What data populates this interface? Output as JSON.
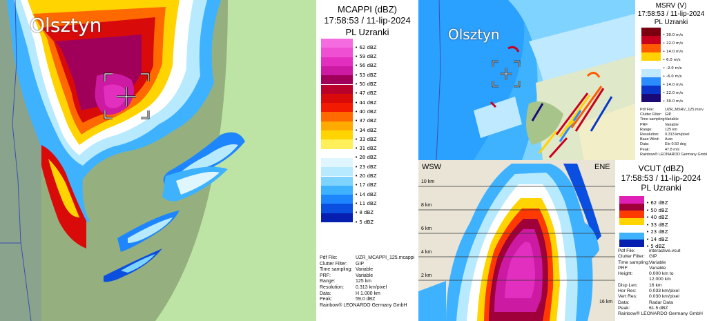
{
  "mcappi": {
    "city": "Olsztyn",
    "title_line1": "MCAPPI (dBZ)",
    "title_line2": "17:58:53 / 11-lip-2024",
    "title_line3": "PL Uzranki",
    "legend": [
      {
        "label": "62 dBZ",
        "color": "#f56be0"
      },
      {
        "label": "59 dBZ",
        "color": "#ee4fd3"
      },
      {
        "label": "56 dBZ",
        "color": "#e22fbf"
      },
      {
        "label": "53 dBZ",
        "color": "#cc1aa3"
      },
      {
        "label": "50 dBZ",
        "color": "#a0005a"
      },
      {
        "label": "47 dBZ",
        "color": "#b8002a"
      },
      {
        "label": "44 dBZ",
        "color": "#d80a0a"
      },
      {
        "label": "40 dBZ",
        "color": "#f21a00"
      },
      {
        "label": "37 dBZ",
        "color": "#ff6a00"
      },
      {
        "label": "34 dBZ",
        "color": "#ffaa00"
      },
      {
        "label": "33 dBZ",
        "color": "#ffd400"
      },
      {
        "label": "31 dBZ",
        "color": "#ffef5a"
      },
      {
        "label": "28 dBZ",
        "color": "#ffffff"
      },
      {
        "label": "23 dBZ",
        "color": "#dff6ff"
      },
      {
        "label": "20 dBZ",
        "color": "#b7eaff"
      },
      {
        "label": "17 dBZ",
        "color": "#7fd3ff"
      },
      {
        "label": "14 dBZ",
        "color": "#3fb2ff"
      },
      {
        "label": "11 dBZ",
        "color": "#1d86ff"
      },
      {
        "label": "8 dBZ",
        "color": "#0a4fe0"
      },
      {
        "label": "5 dBZ",
        "color": "#061fb0"
      }
    ],
    "meta": [
      {
        "key": "Pdf File:",
        "value": "UZR_MCAPPI_125.mcappi"
      },
      {
        "key": "Clutter Filter:",
        "value": "GIP"
      },
      {
        "key": "Time sampling:",
        "value": "Variable"
      },
      {
        "key": "PRF:",
        "value": "Variable"
      },
      {
        "key": "Range:",
        "value": "125 km"
      },
      {
        "key": "Resolution:",
        "value": "0.313 km/pixel"
      },
      {
        "key": "Data:",
        "value": "H 1.000 km"
      },
      {
        "key": "Peak:",
        "value": "59.0 dBZ"
      }
    ],
    "copyright": "Rainbow® LEONARDO Germany GmbH"
  },
  "msrv": {
    "city": "Olsztyn",
    "title_line1": "MSRV (V)",
    "title_line2": "17:58:53 / 11-lip-2024",
    "title_line3": "PL Uzranki",
    "legend": [
      {
        "label": "30.0 m/s",
        "color": "#7a0010"
      },
      {
        "label": "22.0 m/s",
        "color": "#c8001e"
      },
      {
        "label": "14.0 m/s",
        "color": "#ff5a00"
      },
      {
        "label": "6.0 m/s",
        "color": "#ffd200"
      },
      {
        "label": "-2.0 m/s",
        "color": "#ffffff"
      },
      {
        "label": "-6.0 m/s",
        "color": "#bfe9ff"
      },
      {
        "label": "14.0 m/s",
        "color": "#2a8cff"
      },
      {
        "label": "22.0 m/s",
        "color": "#0b35c8"
      },
      {
        "label": "30.0 m/s",
        "color": "#1a0a78"
      }
    ],
    "meta": [
      {
        "key": "Pdf File:",
        "value": "UZR_MSRV_125.msrv"
      },
      {
        "key": "Clutter Filter:",
        "value": "GIP"
      },
      {
        "key": "Time sampling:",
        "value": "Variable"
      },
      {
        "key": "PRF:",
        "value": "Variable"
      },
      {
        "key": "Range:",
        "value": "125 km"
      },
      {
        "key": "Resolution:",
        "value": "0.313 km/pixel"
      },
      {
        "key": "Base Wind:",
        "value": "Auto"
      },
      {
        "key": "Data:",
        "value": "Ele 0.50 deg"
      },
      {
        "key": "Peak:",
        "value": "47.8 m/s"
      }
    ],
    "copyright": "Rainbow® LEONARDO Germany GmbH"
  },
  "vcut": {
    "left_dir": "WSW",
    "right_dir": "ENE",
    "heights": [
      "10 km",
      "8 km",
      "6 km",
      "4 km",
      "2 km"
    ],
    "distance_label": "16 km",
    "title_line1": "VCUT (dBZ)",
    "title_line2": "17:58:53 / 11-lip-2024",
    "title_line3": "PL Uzranki",
    "legend": [
      {
        "label": "62 dBZ",
        "color": "#e01fb6"
      },
      {
        "label": "50 dBZ",
        "color": "#a0003a"
      },
      {
        "label": "40 dBZ",
        "color": "#ff3a00"
      },
      {
        "label": "33 dBZ",
        "color": "#ffd400"
      },
      {
        "label": "23 dBZ",
        "color": "#ffffff"
      },
      {
        "label": "14 dBZ",
        "color": "#3fb2ff"
      },
      {
        "label": "5 dBZ",
        "color": "#061fb0"
      }
    ],
    "meta": [
      {
        "key": "Pdf File:",
        "value": "interactive.vcut"
      },
      {
        "key": "Clutter Filter:",
        "value": "GIP"
      },
      {
        "key": "Time sampling:",
        "value": "Variable"
      },
      {
        "key": "PRF:",
        "value": "Variable"
      },
      {
        "key": "Height:",
        "value": "0.000 km to"
      },
      {
        "key": "",
        "value": "12.000 km"
      },
      {
        "key": "Disp Len:",
        "value": "16 km"
      },
      {
        "key": "Hor Res:",
        "value": "0.033 km/pixel"
      },
      {
        "key": "Vert Res:",
        "value": "0.030 km/pixel"
      },
      {
        "key": "Data:",
        "value": "Radar Data"
      },
      {
        "key": "Peak:",
        "value": "61.5 dBZ"
      }
    ],
    "copyright": "Rainbow® LEONARDO Germany GmbH"
  }
}
